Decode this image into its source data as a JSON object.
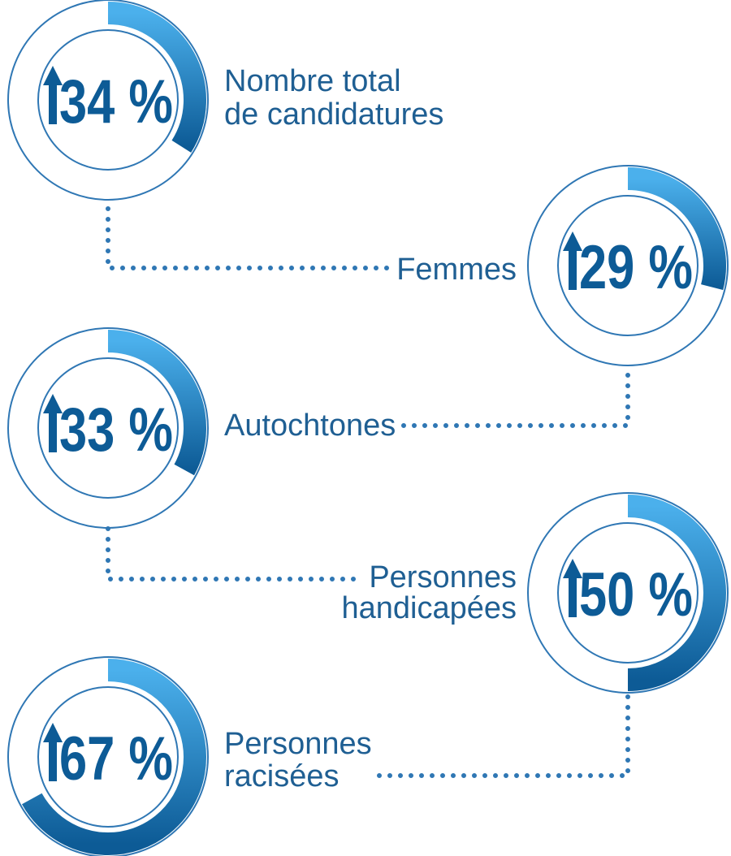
{
  "chart_data": {
    "type": "radial-progress",
    "items": [
      {
        "label_lines": [
          "Nombre total",
          "de candidatures"
        ],
        "value": 34,
        "display": "34 %",
        "direction": "up"
      },
      {
        "label_lines": [
          "Femmes"
        ],
        "value": 29,
        "display": "29 %",
        "direction": "up"
      },
      {
        "label_lines": [
          "Autochtones"
        ],
        "value": 33,
        "display": "33 %",
        "direction": "up"
      },
      {
        "label_lines": [
          "Personnes",
          "handicapées"
        ],
        "value": 50,
        "display": "50 %",
        "direction": "up"
      },
      {
        "label_lines": [
          "Personnes",
          "racisées"
        ],
        "value": 67,
        "display": "67 %",
        "direction": "up"
      }
    ]
  },
  "colors": {
    "dark_blue": "#0d5b96",
    "light_blue": "#4bb0ec",
    "thin_ring": "#2f77b4",
    "text": "#1f5f93"
  },
  "icons": {
    "direction": "up-arrow-icon"
  }
}
